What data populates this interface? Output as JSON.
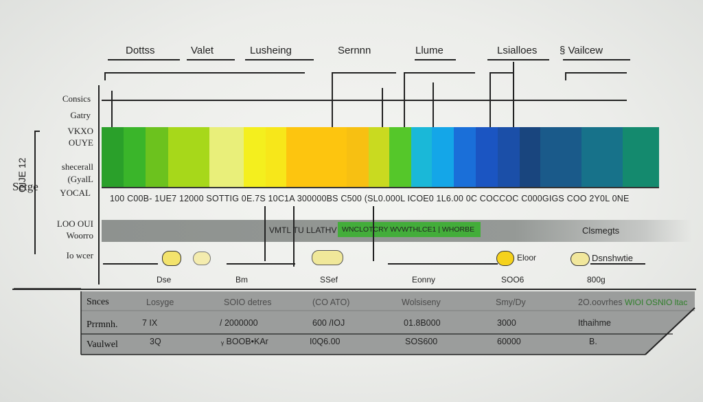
{
  "header_labels": [
    "Dottss",
    "Valet",
    "Lusheing",
    "Sernnn",
    "Llume",
    "Lsialloes",
    "§ Vailcew"
  ],
  "left_labels": {
    "consics": "Consics",
    "gaty": "Gatry",
    "vkyo": "VKXO",
    "ouye": "OUYE",
    "shecerall": "shecerall",
    "gyall": "(GyalL",
    "yocal": "YOCAL",
    "setge": "Setge",
    "vertical": "OIJE 12",
    "loooui": "LOO OUI",
    "woorro": "Woorro",
    "lowcer": "Io wcer"
  },
  "spectrum_colors": [
    "#2aa02a",
    "#3ab52a",
    "#6cc21e",
    "#a7d81a",
    "#e9ef7a",
    "#f4ef1e",
    "#f7e71a",
    "#fdc50f",
    "#f7c012",
    "#c9da20",
    "#55c72a",
    "#1ab8d8",
    "#14a6e8",
    "#1a6fd9",
    "#1b55c2",
    "#1b4fa8",
    "#19457e",
    "#1a5a8a",
    "#17728a",
    "#148a6e",
    "#1e8f3e"
  ],
  "tick_row": "100 C00B-  1UE7  12000  SOTTIG  0E.7S   10C1A  300000BS C500   (SL0.000L  ICOE0  1L6.00  0C COCCOC C000GIGS  COO  2Y0L  0NE",
  "band_label": "VMTL TU LLATHV",
  "band_highlight": "WNCLOTCRY WVWTHLCE1 | WHORBE",
  "band_right": "Clsmegts",
  "dots_labels": {
    "elooi": "Eloor",
    "dsnshwtie": "Dsnshwtie"
  },
  "bottom_labels": [
    "Dse",
    "Bm",
    "SSef",
    "Eonny",
    "SOO6",
    "800g"
  ],
  "table": {
    "rows": [
      {
        "label": "Snces",
        "cells": [
          "Losyge",
          "SOIO detres",
          "(CO ATO)",
          "Wolsiseny",
          "Smy/Dy",
          "2O.oovrhes"
        ],
        "extra": "WIOI OSNIO ltac"
      },
      {
        "label": "Prrmnh.",
        "cells": [
          "7 IX",
          "/ 2000000",
          "600 /IOJ",
          "01.8B000",
          "3000",
          "Ithaihme"
        ]
      },
      {
        "label": "Vaulwel",
        "cells": [
          "3Q",
          "ᵧ BOOB•KAr",
          "I0Q6.00",
          "SOS600",
          "60000",
          "B."
        ]
      }
    ]
  },
  "colors": {
    "band_gray": "#8f9390",
    "band_green": "#43ad3a",
    "table_gray": "#9b9d9c",
    "dot_yellow": "#f3e36c",
    "dot_yellow_strong": "#f5d21c",
    "dark_line": "#222222"
  }
}
